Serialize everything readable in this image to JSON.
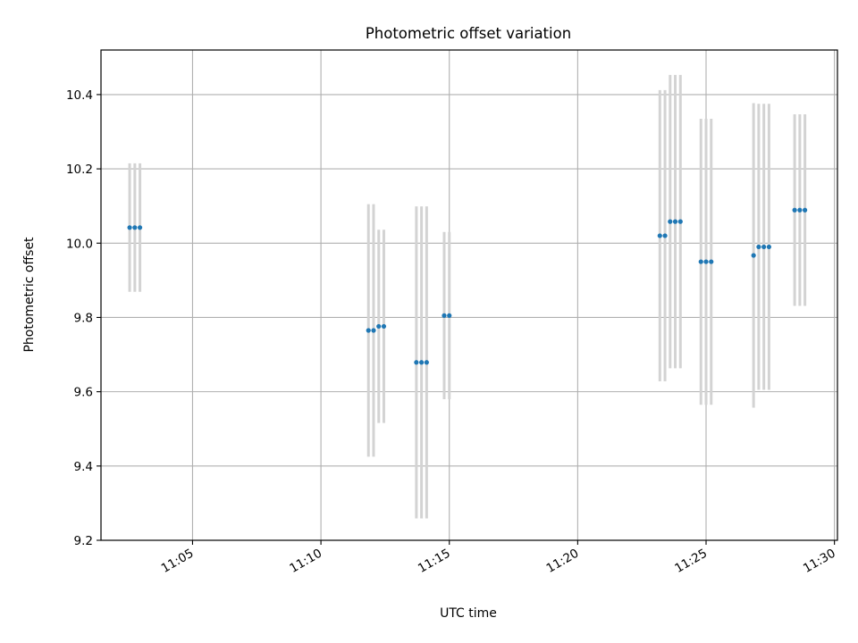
{
  "chart_data": {
    "type": "scatter",
    "title": "Photometric offset variation",
    "xlabel": "UTC time",
    "ylabel": "Photometric offset",
    "xlim": [
      "11:01:26",
      "11:30:07"
    ],
    "ylim": [
      9.2,
      10.52
    ],
    "x_ticks": [
      "11:05",
      "11:10",
      "11:15",
      "11:20",
      "11:25",
      "11:30"
    ],
    "y_ticks": [
      "9.2",
      "9.4",
      "9.6",
      "9.8",
      "10.0",
      "10.2",
      "10.4"
    ],
    "grid": true,
    "colors": {
      "points": "#1f77b4",
      "errorbars": "#d3d3d3",
      "grid": "#b0b0b0"
    },
    "points": [
      {
        "x": "11:02:33",
        "y": 10.042,
        "yerr": 0.173
      },
      {
        "x": "11:02:45",
        "y": 10.042,
        "yerr": 0.173
      },
      {
        "x": "11:02:57",
        "y": 10.042,
        "yerr": 0.173
      },
      {
        "x": "11:11:51",
        "y": 9.765,
        "yerr": 0.34
      },
      {
        "x": "11:12:03",
        "y": 9.765,
        "yerr": 0.34
      },
      {
        "x": "11:12:15",
        "y": 9.776,
        "yerr": 0.26
      },
      {
        "x": "11:12:27",
        "y": 9.776,
        "yerr": 0.26
      },
      {
        "x": "11:13:43",
        "y": 9.679,
        "yerr": 0.42
      },
      {
        "x": "11:13:55",
        "y": 9.679,
        "yerr": 0.42
      },
      {
        "x": "11:14:07",
        "y": 9.679,
        "yerr": 0.42
      },
      {
        "x": "11:14:48",
        "y": 9.805,
        "yerr": 0.225
      },
      {
        "x": "11:15:00",
        "y": 9.805,
        "yerr": 0.225
      },
      {
        "x": "11:23:12",
        "y": 10.02,
        "yerr": 0.392
      },
      {
        "x": "11:23:24",
        "y": 10.02,
        "yerr": 0.392
      },
      {
        "x": "11:23:36",
        "y": 10.058,
        "yerr": 0.395
      },
      {
        "x": "11:23:48",
        "y": 10.058,
        "yerr": 0.395
      },
      {
        "x": "11:24:00",
        "y": 10.058,
        "yerr": 0.395
      },
      {
        "x": "11:24:48",
        "y": 9.95,
        "yerr": 0.385
      },
      {
        "x": "11:25:00",
        "y": 9.95,
        "yerr": 0.385
      },
      {
        "x": "11:25:12",
        "y": 9.95,
        "yerr": 0.385
      },
      {
        "x": "11:26:51",
        "y": 9.967,
        "yerr": 0.41
      },
      {
        "x": "11:27:03",
        "y": 9.99,
        "yerr": 0.385
      },
      {
        "x": "11:27:15",
        "y": 9.99,
        "yerr": 0.385
      },
      {
        "x": "11:27:27",
        "y": 9.99,
        "yerr": 0.385
      },
      {
        "x": "11:28:27",
        "y": 10.089,
        "yerr": 0.258
      },
      {
        "x": "11:28:39",
        "y": 10.089,
        "yerr": 0.258
      },
      {
        "x": "11:28:51",
        "y": 10.089,
        "yerr": 0.258
      }
    ]
  }
}
